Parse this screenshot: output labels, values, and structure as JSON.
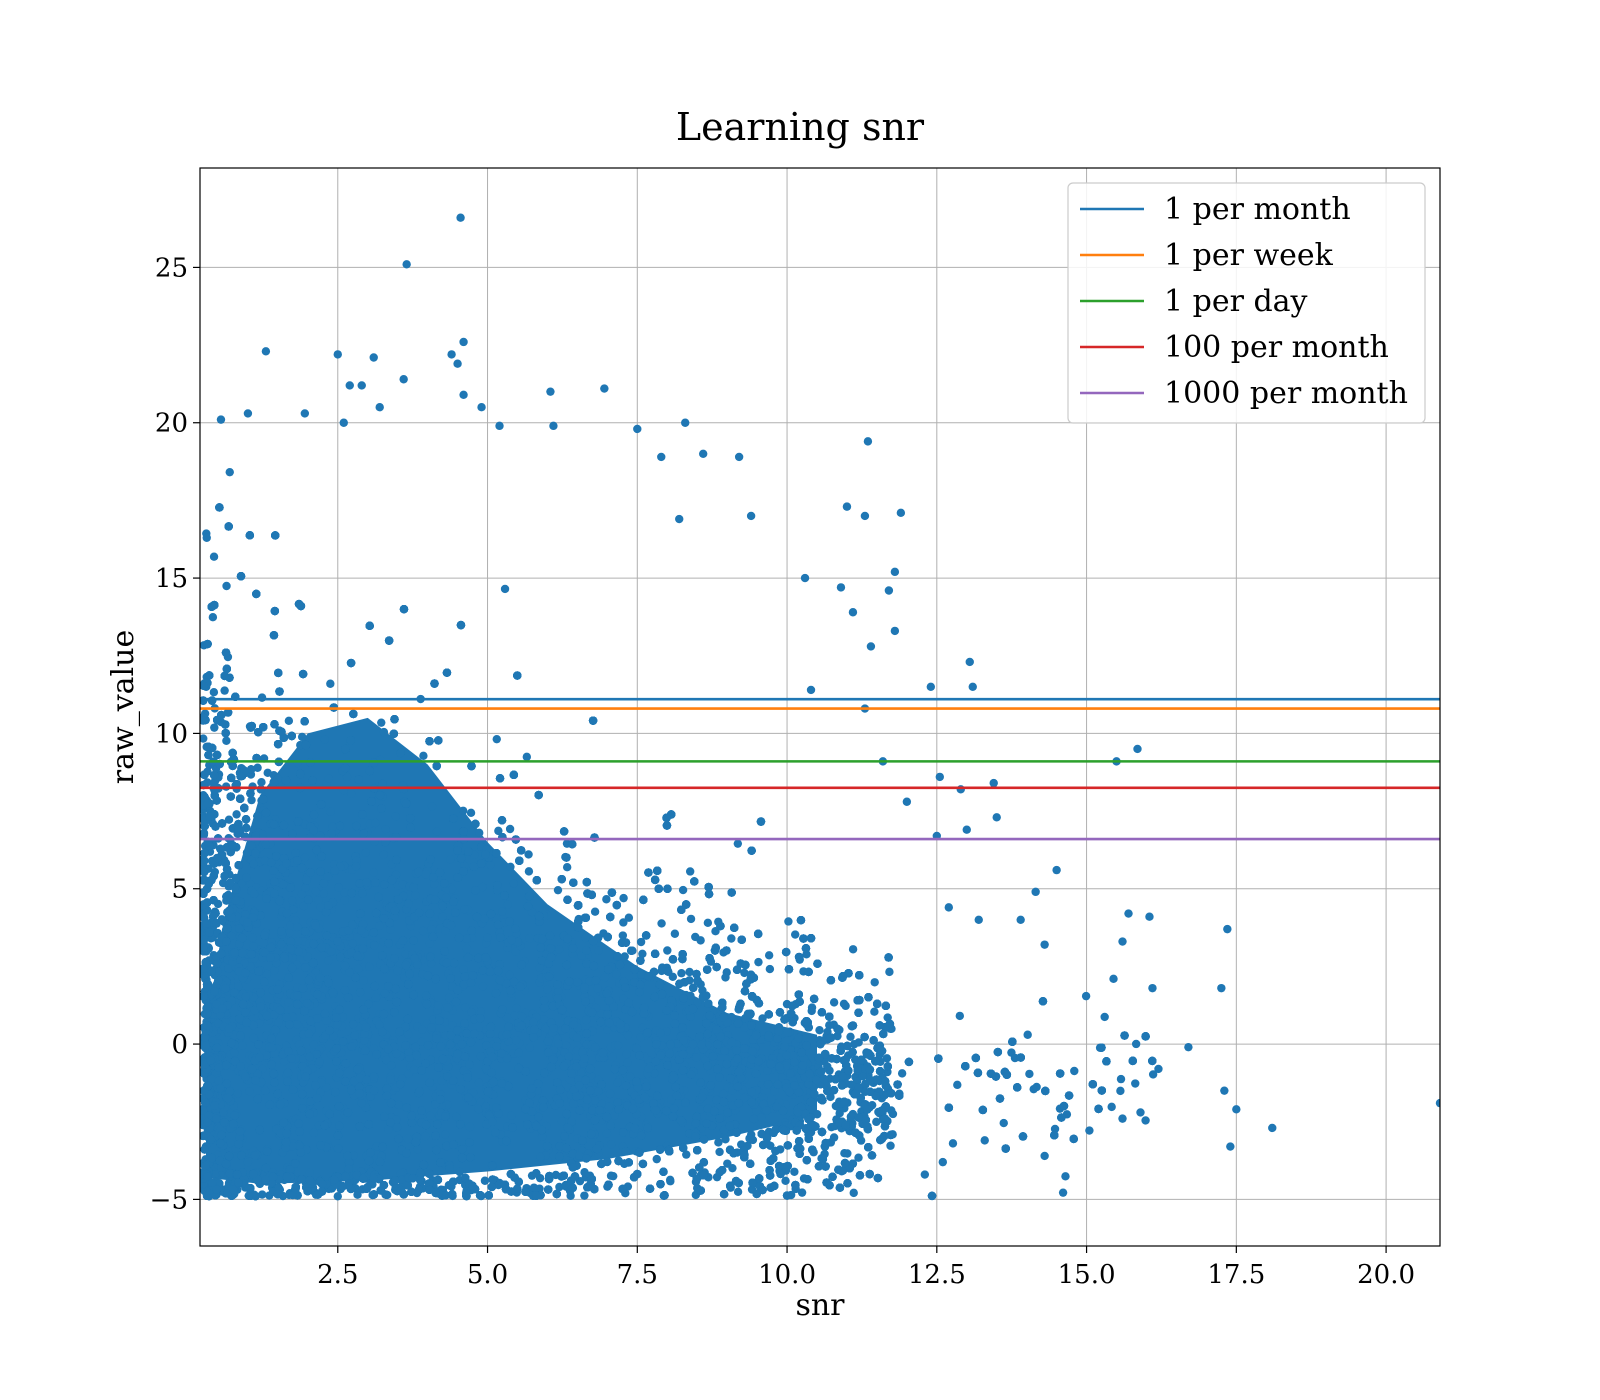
{
  "chart_data": {
    "type": "scatter",
    "title": "Learning snr",
    "xlabel": "snr",
    "ylabel": "raw_value",
    "xlim": [
      0.2,
      20.9
    ],
    "ylim": [
      -6.5,
      28.2
    ],
    "xticks": [
      2.5,
      5.0,
      7.5,
      10.0,
      12.5,
      15.0,
      17.5,
      20.0
    ],
    "xtick_labels": [
      "2.5",
      "5.0",
      "7.5",
      "10.0",
      "12.5",
      "15.0",
      "17.5",
      "20.0"
    ],
    "yticks": [
      -5,
      0,
      5,
      10,
      15,
      20,
      25
    ],
    "ytick_labels": [
      "−5",
      "0",
      "5",
      "10",
      "15",
      "20",
      "25"
    ],
    "grid": true,
    "legend_position": "top-right",
    "scatter_color": "#1f77b4",
    "series": [
      {
        "type": "scatter",
        "points": [
          [
            4.55,
            26.6
          ],
          [
            3.65,
            25.1
          ],
          [
            1.3,
            22.3
          ],
          [
            2.5,
            22.2
          ],
          [
            4.4,
            22.2
          ],
          [
            4.6,
            22.6
          ],
          [
            3.1,
            22.1
          ],
          [
            4.5,
            21.9
          ],
          [
            2.7,
            21.2
          ],
          [
            2.9,
            21.2
          ],
          [
            3.6,
            21.4
          ],
          [
            6.95,
            21.1
          ],
          [
            6.05,
            21.0
          ],
          [
            4.6,
            20.9
          ],
          [
            0.55,
            20.1
          ],
          [
            1.0,
            20.3
          ],
          [
            1.95,
            20.3
          ],
          [
            2.6,
            20.0
          ],
          [
            3.2,
            20.5
          ],
          [
            4.9,
            20.5
          ],
          [
            5.2,
            19.9
          ],
          [
            6.1,
            19.9
          ],
          [
            7.5,
            19.8
          ],
          [
            8.3,
            20.0
          ],
          [
            11.35,
            19.4
          ],
          [
            7.9,
            18.9
          ],
          [
            9.2,
            18.9
          ],
          [
            8.6,
            19.0
          ],
          [
            11.0,
            17.3
          ],
          [
            11.9,
            17.1
          ],
          [
            11.3,
            17.0
          ],
          [
            9.4,
            17.0
          ],
          [
            8.2,
            16.9
          ],
          [
            11.8,
            15.2
          ],
          [
            10.3,
            15.0
          ],
          [
            11.7,
            14.6
          ],
          [
            10.9,
            14.7
          ],
          [
            11.1,
            13.9
          ],
          [
            11.8,
            13.3
          ],
          [
            11.4,
            12.8
          ],
          [
            13.05,
            12.3
          ],
          [
            12.4,
            11.5
          ],
          [
            13.1,
            11.5
          ],
          [
            12.55,
            8.6
          ],
          [
            13.45,
            8.4
          ],
          [
            12.9,
            8.2
          ],
          [
            15.5,
            9.1
          ],
          [
            15.85,
            9.5
          ],
          [
            11.3,
            10.8
          ],
          [
            10.4,
            11.4
          ],
          [
            11.6,
            9.1
          ],
          [
            12.0,
            7.8
          ],
          [
            13.0,
            6.9
          ],
          [
            13.5,
            7.3
          ],
          [
            12.5,
            6.7
          ],
          [
            14.15,
            4.9
          ],
          [
            14.5,
            5.6
          ],
          [
            12.7,
            4.4
          ],
          [
            13.2,
            4.0
          ],
          [
            13.9,
            4.0
          ],
          [
            15.7,
            4.2
          ],
          [
            16.05,
            4.1
          ],
          [
            17.35,
            3.7
          ],
          [
            15.6,
            3.3
          ],
          [
            14.3,
            3.2
          ],
          [
            15.45,
            2.1
          ],
          [
            16.1,
            1.8
          ],
          [
            17.25,
            1.8
          ],
          [
            16.7,
            -0.1
          ],
          [
            17.3,
            -1.5
          ],
          [
            17.5,
            -2.1
          ],
          [
            18.1,
            -2.7
          ],
          [
            17.4,
            -3.3
          ],
          [
            20.9,
            -1.9
          ],
          [
            16.2,
            -0.8
          ],
          [
            15.9,
            -2.2
          ],
          [
            15.6,
            -2.4
          ],
          [
            12.3,
            -4.2
          ],
          [
            12.6,
            -3.8
          ],
          [
            14.3,
            -3.6
          ],
          [
            13.3,
            -3.1
          ],
          [
            4.65,
            -4.9
          ],
          [
            2.5,
            -4.9
          ],
          [
            1.7,
            -4.8
          ],
          [
            7.3,
            -4.8
          ],
          [
            6.2,
            -4.6
          ],
          [
            0.35,
            -4.1
          ],
          [
            1.2,
            -4.5
          ]
        ]
      },
      {
        "name": "1 per month",
        "type": "hline",
        "y": 11.1,
        "color": "#1f77b4"
      },
      {
        "name": "1 per week",
        "type": "hline",
        "y": 10.8,
        "color": "#ff7f0e"
      },
      {
        "name": "1 per day",
        "type": "hline",
        "y": 9.1,
        "color": "#2ca02c"
      },
      {
        "name": "100 per month",
        "type": "hline",
        "y": 8.25,
        "color": "#d62728"
      },
      {
        "name": "1000 per month",
        "type": "hline",
        "y": 6.6,
        "color": "#9467bd"
      }
    ]
  }
}
